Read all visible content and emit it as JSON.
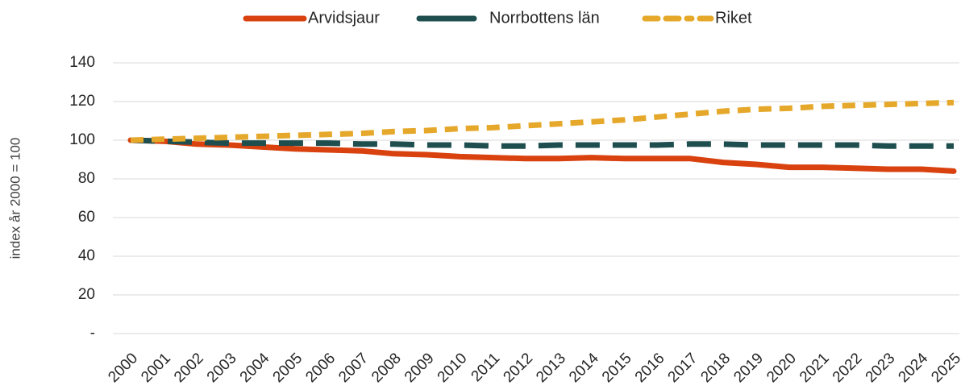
{
  "chart_data": {
    "type": "line",
    "ylabel": "index år 2000 = 100",
    "categories": [
      "2000",
      "2001",
      "2002",
      "2003",
      "2004",
      "2005",
      "2006",
      "2007",
      "2008",
      "2009",
      "2010",
      "2011",
      "2012",
      "2013",
      "2014",
      "2015",
      "2016",
      "2017",
      "2018",
      "2019",
      "2020",
      "2021",
      "2022",
      "2023",
      "2024",
      "2025"
    ],
    "series": [
      {
        "name": "Arvidsjaur",
        "color": "#d9410e",
        "dash": "solid",
        "values": [
          100,
          99.5,
          98,
          97.5,
          96.5,
          95.5,
          95,
          94.5,
          93,
          92.5,
          91.5,
          91,
          90.5,
          90.5,
          91,
          90.5,
          90.5,
          90.5,
          88.5,
          87.5,
          86,
          86,
          85.5,
          85,
          85,
          84
        ]
      },
      {
        "name": "Norrbottens län",
        "color": "#1f4e4f",
        "dash": "long-dash",
        "values": [
          100,
          99.5,
          99,
          98.5,
          98.5,
          98.5,
          98.5,
          98,
          98,
          97.5,
          97.5,
          97,
          97,
          97.5,
          97.5,
          97.5,
          97.5,
          98,
          98,
          97.5,
          97.5,
          97.5,
          97.5,
          97,
          97,
          97
        ]
      },
      {
        "name": "Riket",
        "color": "#e5a82a",
        "dash": "dash",
        "values": [
          100,
          100.5,
          101,
          101.5,
          102,
          102.5,
          103,
          103.5,
          104.5,
          105,
          106,
          106.5,
          107.5,
          108.5,
          109.5,
          110.5,
          112,
          113.5,
          115,
          116,
          116.5,
          117.5,
          118,
          118.5,
          119,
          119.5
        ]
      }
    ],
    "ylim": [
      0,
      140
    ],
    "yticks": [
      {
        "value": 0,
        "label": "-"
      },
      20,
      40,
      60,
      80,
      100,
      120,
      140
    ],
    "grid": true,
    "legend": "top"
  }
}
